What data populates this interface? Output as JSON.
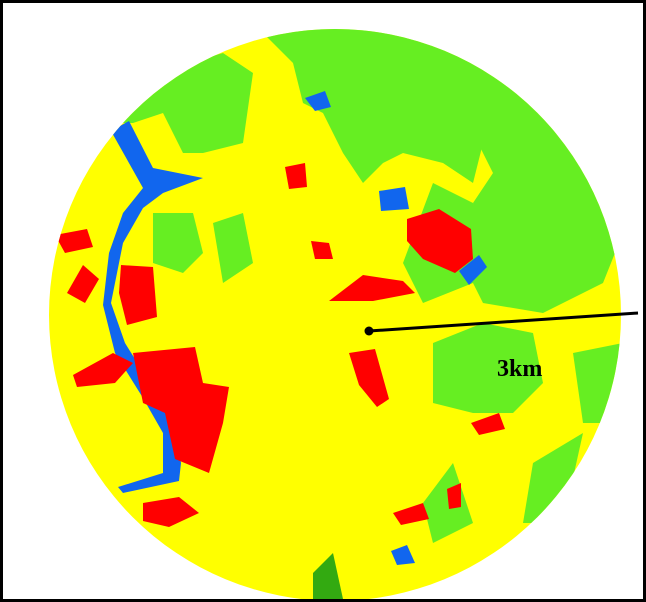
{
  "map": {
    "scale_label": "3km",
    "colors": {
      "background": "#ffff00",
      "vegetation": "#66ee22",
      "built_up": "#ff0000",
      "water": "#1166ee",
      "dark_vegetation": "#33aa11",
      "frame": "#000000",
      "radius_line": "#000000"
    },
    "land_cover_classes": [
      "vegetation",
      "built_up",
      "water",
      "open_land"
    ]
  }
}
